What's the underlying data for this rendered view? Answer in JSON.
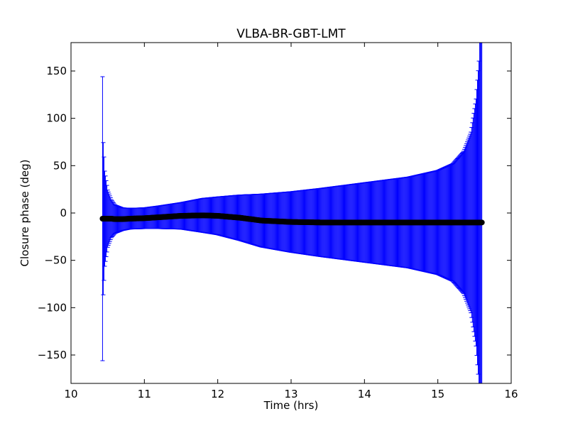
{
  "chart_data": {
    "type": "scatter",
    "title": "VLBA-BR-GBT-LMT",
    "xlabel": "Time (hrs)",
    "ylabel": "Closure phase (deg)",
    "xlim": [
      10,
      16
    ],
    "ylim": [
      -180,
      180
    ],
    "xticks": [
      "10",
      "11",
      "12",
      "13",
      "14",
      "15",
      "16"
    ],
    "yticks": [
      "−150",
      "−100",
      "−50",
      "0",
      "50",
      "100",
      "150"
    ],
    "grid": false,
    "colors": {
      "errorbar": "#0000ff",
      "marker": "#000000"
    },
    "series": [
      {
        "marker": "filled-circle",
        "error_bars": "vertical",
        "x": [
          10.43,
          10.44,
          10.46,
          10.5,
          10.55,
          10.6,
          10.7,
          10.8,
          11.0,
          11.2,
          11.5,
          11.8,
          12.0,
          12.3,
          12.6,
          13.0,
          13.4,
          13.8,
          14.2,
          14.6,
          15.0,
          15.2,
          15.35,
          15.45,
          15.52,
          15.56,
          15.58,
          15.6
        ],
        "y": [
          -6,
          -6,
          -6,
          -6,
          -6,
          -6.5,
          -6.5,
          -6,
          -5.5,
          -4.5,
          -3,
          -2.5,
          -3,
          -5,
          -8,
          -9.5,
          -10,
          -10,
          -10,
          -10,
          -10,
          -10,
          -10,
          -10,
          -10,
          -10,
          -10,
          -10
        ],
        "yerr": [
          150,
          80,
          50,
          30,
          20,
          15,
          12,
          11,
          11,
          12,
          14,
          18,
          20,
          24,
          28,
          32,
          36,
          40,
          44,
          48,
          55,
          62,
          75,
          95,
          130,
          170,
          210,
          220
        ]
      }
    ]
  }
}
